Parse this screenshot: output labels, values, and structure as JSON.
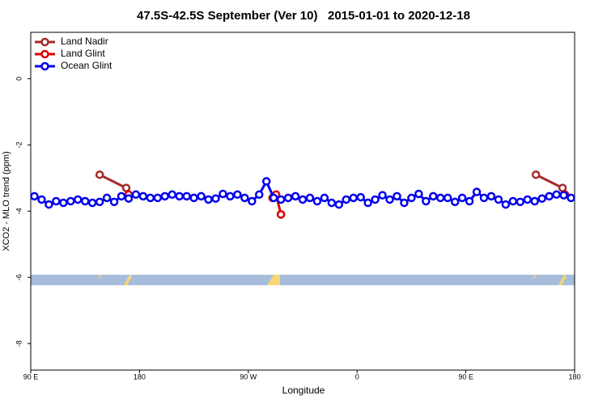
{
  "chart_data": {
    "type": "line",
    "title": "47.5S-42.5S September (Ver 10)   2015-01-01 to 2020-12-18",
    "x_label": "Longitude",
    "y_label": "XCO2 - MLO trend (ppm)",
    "xlim": [
      90,
      540
    ],
    "ylim": [
      -8.8,
      1.4
    ],
    "xticks": [
      {
        "value": 90,
        "label": "90 E"
      },
      180,
      {
        "value": 270,
        "label": "90 W"
      },
      {
        "value": 360,
        "label": "0"
      },
      {
        "value": 450,
        "label": "90 E"
      },
      {
        "value": 540,
        "label": "180"
      }
    ],
    "yticks": [
      0,
      -2,
      -4,
      -6,
      -8
    ],
    "legend": "top-left",
    "series": [
      {
        "name": "Land Nadir",
        "color": "#a52a2a",
        "x": [
          147,
          169,
          233,
          297,
          400,
          508,
          530
        ],
        "values": [
          -2.9,
          -3.3,
          null,
          -4.1,
          null,
          -2.9,
          -3.3
        ]
      },
      {
        "name": "Land Glint",
        "color": "#e00000",
        "x": [
          171,
          230,
          290,
          293,
          297,
          410,
          532
        ],
        "values": [
          -3.5,
          null,
          -3.6,
          -3.5,
          -4.1,
          null,
          -3.5
        ]
      },
      {
        "name": "Ocean Glint",
        "color": "#0000ee",
        "x": [
          93,
          99,
          105,
          111,
          117,
          123,
          129,
          135,
          141,
          147,
          153,
          159,
          165,
          171,
          177,
          183,
          189,
          195,
          201,
          207,
          213,
          219,
          225,
          231,
          237,
          243,
          249,
          255,
          261,
          267,
          273,
          279,
          285,
          291,
          297,
          303,
          309,
          315,
          321,
          327,
          333,
          339,
          345,
          351,
          357,
          363,
          369,
          375,
          381,
          387,
          393,
          399,
          405,
          411,
          417,
          423,
          429,
          435,
          441,
          447,
          453,
          459,
          465,
          471,
          477,
          483,
          489,
          495,
          501,
          507,
          513,
          519,
          525,
          531,
          537
        ],
        "values": [
          -3.55,
          -3.65,
          -3.8,
          -3.7,
          -3.75,
          -3.7,
          -3.65,
          -3.7,
          -3.75,
          -3.72,
          -3.6,
          -3.72,
          -3.55,
          -3.62,
          -3.5,
          -3.55,
          -3.6,
          -3.6,
          -3.55,
          -3.5,
          -3.55,
          -3.55,
          -3.6,
          -3.55,
          -3.65,
          -3.62,
          -3.48,
          -3.55,
          -3.5,
          -3.6,
          -3.7,
          -3.5,
          -3.1,
          -3.6,
          -3.65,
          -3.6,
          -3.55,
          -3.65,
          -3.6,
          -3.7,
          -3.6,
          -3.75,
          -3.8,
          -3.65,
          -3.6,
          -3.58,
          -3.75,
          -3.65,
          -3.52,
          -3.65,
          -3.55,
          -3.75,
          -3.6,
          -3.48,
          -3.7,
          -3.55,
          -3.6,
          -3.6,
          -3.72,
          -3.6,
          -3.7,
          -3.42,
          -3.6,
          -3.55,
          -3.65,
          -3.8,
          -3.7,
          -3.72,
          -3.65,
          -3.7,
          -3.62,
          -3.55,
          -3.5,
          -3.52,
          -3.6
        ]
      }
    ]
  }
}
